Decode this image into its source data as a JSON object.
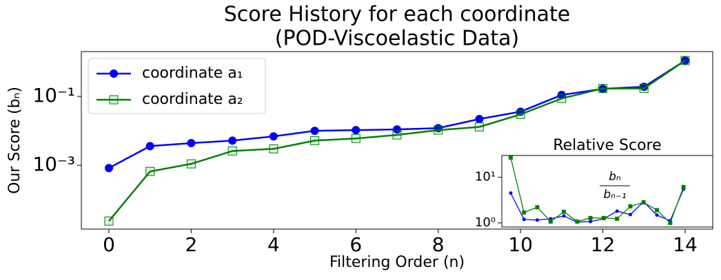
{
  "chart_data": [
    {
      "type": "line",
      "title": [
        "Score History for each coordinate",
        "(POD-Viscoelastic Data)"
      ],
      "x_label": "Filtering Order (n)",
      "y_label": "Our Score (bₙ)",
      "x": [
        0,
        1,
        2,
        3,
        4,
        5,
        6,
        7,
        8,
        9,
        10,
        11,
        12,
        13,
        14
      ],
      "series": [
        {
          "name": "coordinate a₁",
          "color": "#0000ff",
          "marker": "circle",
          "values": [
            0.00083,
            0.0036,
            0.0044,
            0.0052,
            0.0069,
            0.01,
            0.0105,
            0.011,
            0.012,
            0.022,
            0.036,
            0.11,
            0.166,
            0.19,
            1.1
          ]
        },
        {
          "name": "coordinate a₂",
          "color": "#008000",
          "marker": "square-open",
          "values": [
            2.4e-05,
            0.00066,
            0.0011,
            0.0026,
            0.003,
            0.0052,
            0.006,
            0.0076,
            0.0105,
            0.013,
            0.03,
            0.087,
            0.17,
            0.17,
            1.1
          ]
        }
      ],
      "xlim": [
        -0.67,
        14.67
      ],
      "xticks": [
        0,
        2,
        4,
        6,
        8,
        10,
        12,
        14
      ],
      "ylim": [
        1.4e-05,
        2
      ],
      "log_y": true,
      "yticks": [
        {
          "value": 0.001,
          "label": "10⁻³"
        },
        {
          "value": 0.1,
          "label": "10⁻¹"
        }
      ],
      "legend": "upper left"
    },
    {
      "type": "line",
      "title": "Relative Score",
      "annotation": {
        "numerator": "bₙ",
        "denominator": "bₙ₋₁"
      },
      "x": [
        1,
        2,
        3,
        4,
        5,
        6,
        7,
        8,
        9,
        10,
        11,
        12,
        13,
        14
      ],
      "series": [
        {
          "name": "coordinate a₁",
          "color": "#0000ff",
          "marker": "circle",
          "values": [
            4.5,
            1.19,
            1.15,
            1.23,
            1.42,
            1.04,
            1.07,
            1.23,
            1.81,
            1.52,
            2.9,
            1.48,
            1.11,
            5.5
          ]
        },
        {
          "name": "coordinate a₂",
          "color": "#008000",
          "marker": "square",
          "values": [
            27,
            1.69,
            2.2,
            1.07,
            1.75,
            1.07,
            1.28,
            1.28,
            1.23,
            2.3,
            2.8,
            1.9,
            1.0,
            6.1
          ]
        }
      ],
      "xlim": [
        0.33,
        16.2
      ],
      "ylim": [
        0.81,
        30
      ],
      "log_y": true,
      "yticks": [
        {
          "value": 1,
          "label": "10⁰"
        },
        {
          "value": 10,
          "label": "10¹"
        }
      ]
    }
  ]
}
